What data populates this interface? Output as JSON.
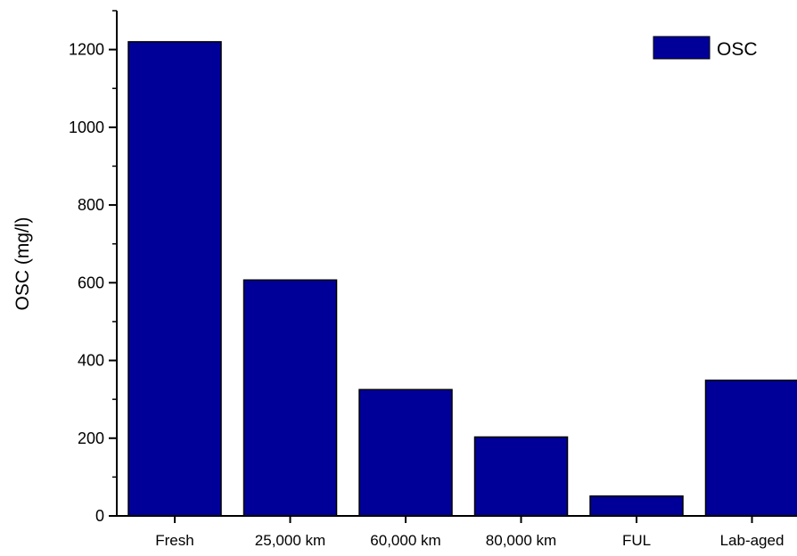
{
  "chart_data": {
    "type": "bar",
    "categories": [
      "Fresh",
      "25,000 km",
      "60,000 km",
      "80,000 km",
      "FUL",
      "Lab-aged"
    ],
    "series": [
      {
        "name": "OSC",
        "values": [
          1220,
          607,
          325,
          203,
          51,
          349
        ]
      }
    ],
    "title": "",
    "xlabel": "",
    "ylabel": "OSC (mg/l)",
    "ylim": [
      0,
      1300
    ],
    "yticks": [
      0,
      200,
      400,
      600,
      800,
      1000,
      1200
    ],
    "ytick_labels": [
      "0",
      "200",
      "400",
      "600",
      "800",
      "1000",
      "1200"
    ],
    "legend": {
      "position": "top-right",
      "entries": [
        "OSC"
      ]
    },
    "grid": false,
    "bar_color": "#000099"
  }
}
